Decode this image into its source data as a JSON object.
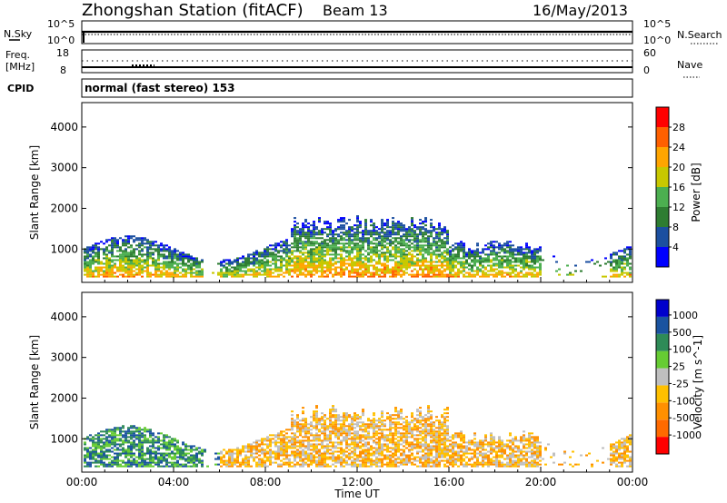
{
  "header": {
    "station": "Zhongshan Station (fitACF)",
    "beam": "Beam 13",
    "date": "16/May/2013"
  },
  "noise_panel": {
    "left_label": "N.Sky",
    "left_ticks": [
      "10^5",
      "10^0"
    ],
    "right_label": "N.Search",
    "right_ticks": [
      "10^5",
      "10^0"
    ]
  },
  "freq_panel": {
    "left_label": "Freq.",
    "left_unit": "[MHz]",
    "left_ticks": [
      "18",
      "8"
    ],
    "right_label": "Nave",
    "right_ticks": [
      "60",
      "0"
    ]
  },
  "cpid": {
    "label": "CPID",
    "value": "normal (fast stereo) 153"
  },
  "range_axis": {
    "label": "Slant Range [km]",
    "ticks": [
      "4000",
      "3000",
      "2000",
      "1000"
    ],
    "range": [
      180,
      4600
    ]
  },
  "time_axis": {
    "label": "Time UT",
    "ticks": [
      "00:00",
      "04:00",
      "08:00",
      "12:00",
      "16:00",
      "20:00",
      "00:00"
    ],
    "range_hours": [
      0,
      24
    ]
  },
  "colors": {
    "power": [
      "#0000ff",
      "#1b4fa0",
      "#2e7d32",
      "#4caf50",
      "#c8c800",
      "#ffa500",
      "#ff6000",
      "#ff0000"
    ],
    "velocity": [
      "#ff0000",
      "#ff6a00",
      "#ff9000",
      "#ffc000",
      "#bfbfbf",
      "#66cc33",
      "#2e8b57",
      "#1a53a0",
      "#0000cc"
    ]
  },
  "chart_data": [
    {
      "type": "heatmap",
      "quantity": "Power",
      "colorbar_label": "Power [dB]",
      "colorbar_ticks": [
        "28",
        "24",
        "20",
        "16",
        "12",
        "8",
        "4"
      ],
      "color_range": [
        0,
        32
      ],
      "xlabel": "",
      "ylabel": "Slant Range [km]",
      "xlim_hours": [
        0,
        24
      ],
      "ylim_km": [
        180,
        4600
      ]
    },
    {
      "type": "heatmap",
      "quantity": "Velocity",
      "colorbar_label": "Velocity [m s^-1]",
      "colorbar_ticks": [
        "1000",
        "500",
        "100",
        "25",
        "-25",
        "-100",
        "-500",
        "-1000"
      ],
      "xlabel": "Time UT",
      "ylabel": "Slant Range [km]",
      "xlim_hours": [
        0,
        24
      ],
      "ylim_km": [
        180,
        4600
      ]
    }
  ]
}
